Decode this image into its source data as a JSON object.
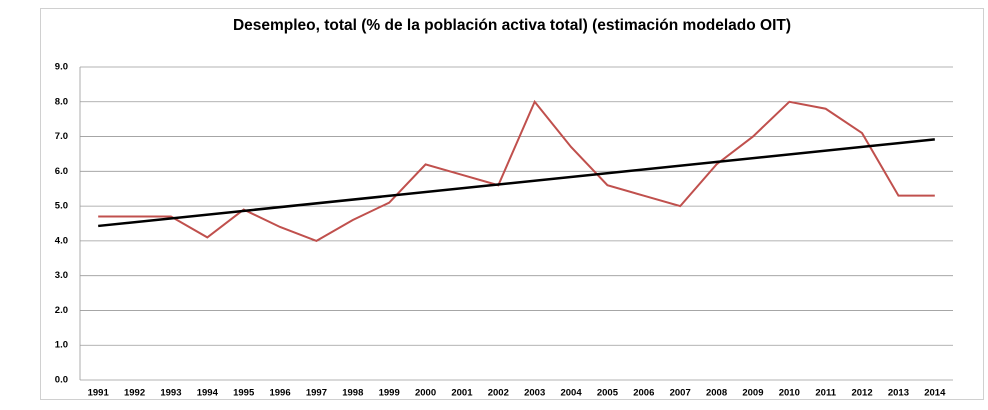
{
  "chart_data": {
    "type": "line",
    "title": "Desempleo, total (% de la población activa total) (estimación modelado OIT)",
    "categories": [
      "1991",
      "1992",
      "1993",
      "1994",
      "1995",
      "1996",
      "1997",
      "1998",
      "1999",
      "2000",
      "2001",
      "2002",
      "2003",
      "2004",
      "2005",
      "2006",
      "2007",
      "2008",
      "2009",
      "2010",
      "2011",
      "2012",
      "2013",
      "2014"
    ],
    "series": [
      {
        "color": "#c0504d",
        "values": [
          4.7,
          4.7,
          4.7,
          4.1,
          4.9,
          4.4,
          4.0,
          4.6,
          5.1,
          6.2,
          5.9,
          5.6,
          8.0,
          6.7,
          5.6,
          5.3,
          5.0,
          6.2,
          7.0,
          8.0,
          7.8,
          7.1,
          5.3,
          5.3
        ]
      }
    ],
    "trendline": {
      "color": "#000000",
      "start": 4.43,
      "end": 6.92
    },
    "ylim": [
      0,
      9
    ],
    "yticks": [
      {
        "value": 0,
        "label": "0.0"
      },
      {
        "value": 1,
        "label": "1.0"
      },
      {
        "value": 2,
        "label": "2.0"
      },
      {
        "value": 3,
        "label": "3.0"
      },
      {
        "value": 4,
        "label": "4.0"
      },
      {
        "value": 5,
        "label": "5.0"
      },
      {
        "value": 6,
        "label": "6.0"
      },
      {
        "value": 7,
        "label": "7.0"
      },
      {
        "value": 8,
        "label": "8.0"
      },
      {
        "value": 9,
        "label": "9.0"
      }
    ],
    "grid": true
  }
}
